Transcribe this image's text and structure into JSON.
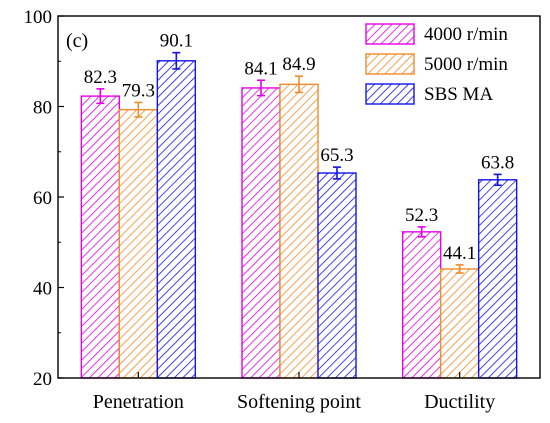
{
  "chart_data": {
    "type": "bar",
    "title": "",
    "panel_label": "(c)",
    "xlabel": "",
    "ylabel": "",
    "ylim": [
      20,
      100
    ],
    "yticks": [
      20,
      40,
      60,
      80,
      100
    ],
    "categories": [
      "Penetration",
      "Softening point",
      "Ductility"
    ],
    "series": [
      {
        "name": "4000 r/min",
        "values": [
          82.3,
          84.1,
          52.3
        ],
        "errors": [
          1.6,
          1.7,
          1.1
        ],
        "color": "#e600e6"
      },
      {
        "name": "5000 r/min",
        "values": [
          79.3,
          84.9,
          44.1
        ],
        "errors": [
          1.6,
          1.8,
          0.9
        ],
        "color": "#f08c2a"
      },
      {
        "name": "SBS MA",
        "values": [
          90.1,
          65.3,
          63.8
        ],
        "errors": [
          1.8,
          1.3,
          1.2
        ],
        "color": "#1414e6"
      }
    ],
    "value_labels": [
      [
        "82.3",
        "84.1",
        "52.3"
      ],
      [
        "79.3",
        "84.9",
        "44.1"
      ],
      [
        "90.1",
        "65.3",
        "63.8"
      ]
    ],
    "legend_position": "top-right",
    "grid": false,
    "pattern": "diagonal-hatch"
  }
}
